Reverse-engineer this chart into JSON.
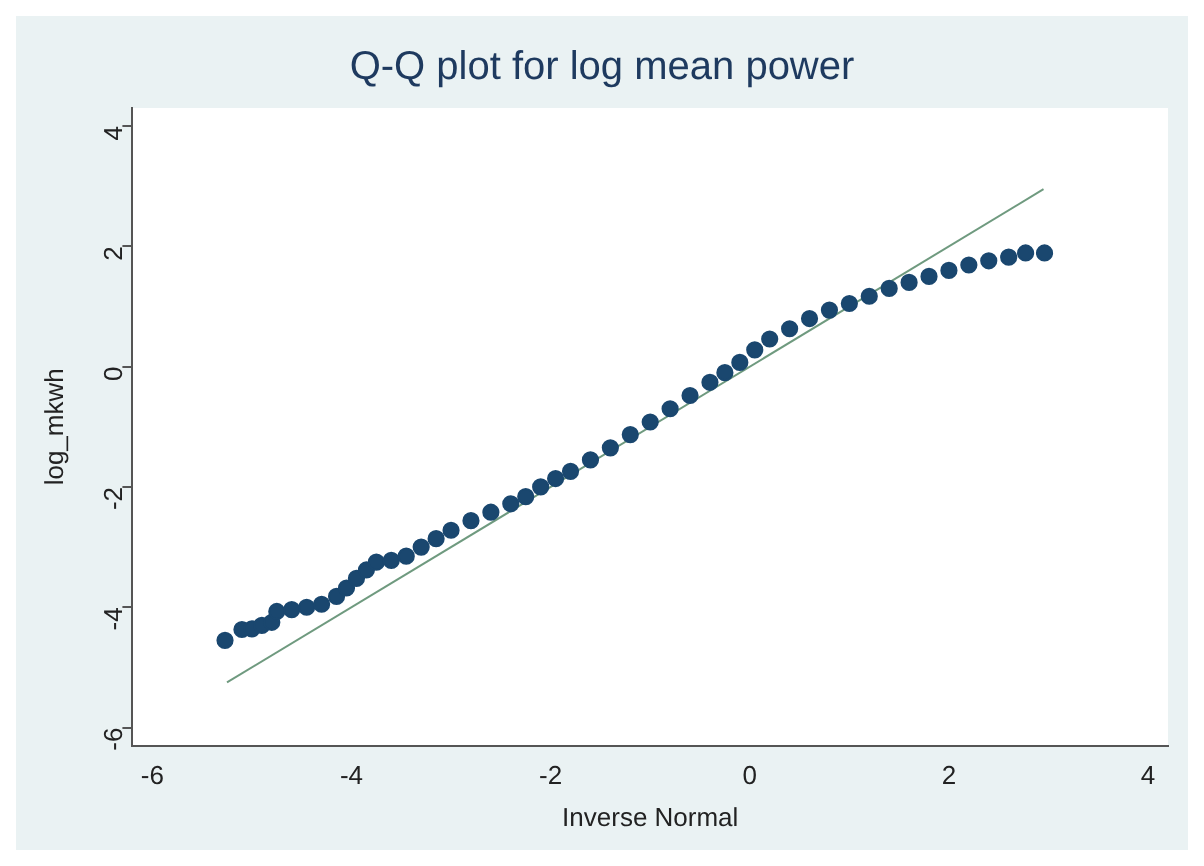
{
  "chart_data": {
    "type": "scatter",
    "title": "Q-Q plot for log mean power",
    "xlabel": "Inverse Normal",
    "ylabel": "log_mkwh",
    "xlim": [
      -6.2,
      4.2
    ],
    "ylim": [
      -6.3,
      4.3
    ],
    "xticks": [
      -6,
      -4,
      -2,
      0,
      2,
      4
    ],
    "yticks": [
      -6,
      -4,
      -2,
      0,
      2,
      4
    ],
    "grid": false,
    "legend": false,
    "marker": "circle",
    "series": [
      {
        "type": "scatter",
        "color": "#1a476f",
        "x": [
          -5.27,
          -5.1,
          -5.0,
          -4.9,
          -4.8,
          -4.75,
          -4.6,
          -4.45,
          -4.3,
          -4.15,
          -4.05,
          -3.95,
          -3.85,
          -3.75,
          -3.6,
          -3.45,
          -3.3,
          -3.15,
          -3.0,
          -2.8,
          -2.6,
          -2.4,
          -2.25,
          -2.1,
          -1.95,
          -1.8,
          -1.6,
          -1.4,
          -1.2,
          -1.0,
          -0.8,
          -0.6,
          -0.4,
          -0.25,
          -0.1,
          0.05,
          0.2,
          0.4,
          0.6,
          0.8,
          1.0,
          1.2,
          1.4,
          1.6,
          1.8,
          2.0,
          2.2,
          2.4,
          2.6,
          2.77,
          2.96
        ],
        "values": [
          -4.55,
          -4.37,
          -4.36,
          -4.3,
          -4.25,
          -4.07,
          -4.04,
          -4.0,
          -3.95,
          -3.82,
          -3.68,
          -3.52,
          -3.38,
          -3.25,
          -3.22,
          -3.15,
          -3.0,
          -2.86,
          -2.72,
          -2.56,
          -2.42,
          -2.28,
          -2.16,
          -2.0,
          -1.86,
          -1.74,
          -1.55,
          -1.35,
          -1.13,
          -0.92,
          -0.7,
          -0.48,
          -0.26,
          -0.1,
          0.07,
          0.28,
          0.46,
          0.63,
          0.8,
          0.94,
          1.05,
          1.17,
          1.3,
          1.4,
          1.5,
          1.6,
          1.69,
          1.76,
          1.82,
          1.89,
          1.89
        ]
      },
      {
        "type": "line",
        "color": "#6f9a7f",
        "x": [
          -5.25,
          2.95
        ],
        "values": [
          -5.25,
          2.95
        ],
        "marker": "none"
      }
    ]
  }
}
